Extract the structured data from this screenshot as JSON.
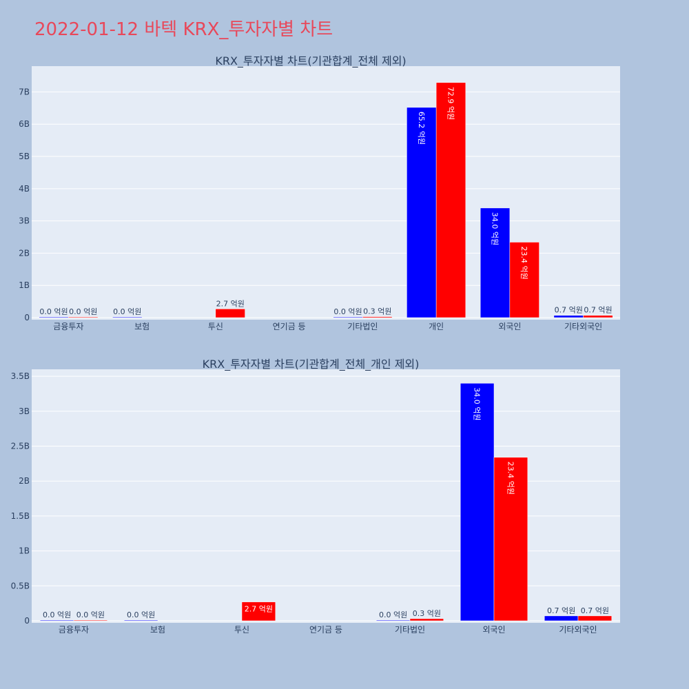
{
  "page": {
    "title": "2022-01-12 바텍 KRX_투자자별 차트",
    "title_color": "#e8485a",
    "background": "#b0c4de",
    "plot_background": "#e5ecf6"
  },
  "chart_data": [
    {
      "type": "bar",
      "title": "KRX_투자자별 차트(기관합계_전체 제외)",
      "categories": [
        "금융투자",
        "보험",
        "투신",
        "연기금 등",
        "기타법인",
        "개인",
        "외국인",
        "기타외국인"
      ],
      "ylim": [
        0,
        7.8
      ],
      "yticks": [
        0,
        1,
        2,
        3,
        4,
        5,
        6,
        7
      ],
      "ytick_labels": [
        "0",
        "1B",
        "2B",
        "3B",
        "4B",
        "5B",
        "6B",
        "7B"
      ],
      "series": [
        {
          "color": "#0000ff",
          "values": [
            0.0,
            0.0,
            null,
            null,
            0.0,
            6.52,
            3.4,
            0.07
          ],
          "labels": [
            "0.0 억원",
            "0.0 억원",
            "",
            "",
            "0.0 억원",
            "65.2 억원",
            "34.0 억원",
            "0.7 억원"
          ]
        },
        {
          "color": "#ff0000",
          "values": [
            0.0,
            null,
            0.27,
            null,
            0.03,
            7.29,
            2.34,
            0.07
          ],
          "labels": [
            "0.0 억원",
            "",
            "2.7 억원",
            "",
            "0.3 억원",
            "72.9 억원",
            "23.4 억원",
            "0.7 억원"
          ]
        }
      ]
    },
    {
      "type": "bar",
      "title": "KRX_투자자별 차트(기관합계_전체_개인 제외)",
      "categories": [
        "금융투자",
        "보험",
        "투신",
        "연기금 등",
        "기타법인",
        "외국인",
        "기타외국인"
      ],
      "ylim": [
        0,
        3.6
      ],
      "yticks": [
        0,
        0.5,
        1,
        1.5,
        2,
        2.5,
        3,
        3.5
      ],
      "ytick_labels": [
        "0",
        "0.5B",
        "1B",
        "1.5B",
        "2B",
        "2.5B",
        "3B",
        "3.5B"
      ],
      "series": [
        {
          "color": "#0000ff",
          "values": [
            0.0,
            0.0,
            null,
            null,
            0.0,
            3.4,
            0.07
          ],
          "labels": [
            "0.0 억원",
            "0.0 억원",
            "",
            "",
            "0.0 억원",
            "34.0 억원",
            "0.7 억원"
          ]
        },
        {
          "color": "#ff0000",
          "values": [
            0.0,
            null,
            0.27,
            null,
            0.03,
            2.34,
            0.07
          ],
          "labels": [
            "0.0 억원",
            "",
            "2.7 억원",
            "",
            "0.3 억원",
            "23.4 억원",
            "0.7 억원"
          ]
        }
      ]
    }
  ]
}
